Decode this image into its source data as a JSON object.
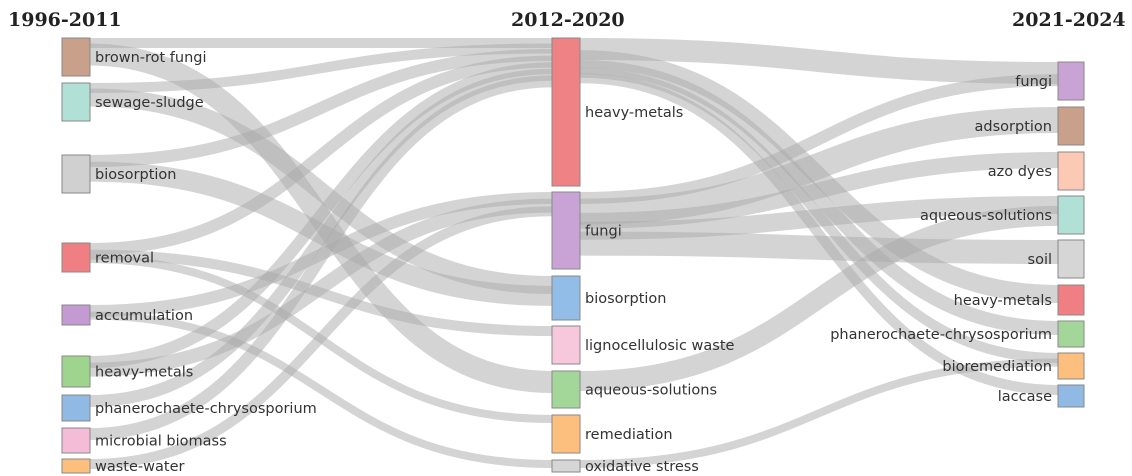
{
  "columns": [
    {
      "title": "1996-2011",
      "nodes": [
        {
          "id": "c0-brown-rot-fungi",
          "label": "brown-rot fungi",
          "color": "#c9a08a"
        },
        {
          "id": "c0-sewage-sludge",
          "label": "sewage-sludge",
          "color": "#b0e0d6"
        },
        {
          "id": "c0-biosorption",
          "label": "biosorption",
          "color": "#d0d0d0"
        },
        {
          "id": "c0-removal",
          "label": "removal",
          "color": "#ef7f82"
        },
        {
          "id": "c0-accumulation",
          "label": "accumulation",
          "color": "#c49ad2"
        },
        {
          "id": "c0-heavy-metals",
          "label": "heavy-metals",
          "color": "#9fd48f"
        },
        {
          "id": "c0-phanerochaete-chrysosporium",
          "label": "phanerochaete-chrysosporium",
          "color": "#90b9e3"
        },
        {
          "id": "c0-microbial-biomass",
          "label": "microbial biomass",
          "color": "#f4bcd6"
        },
        {
          "id": "c0-waste-water",
          "label": "waste-water",
          "color": "#fcbf7d"
        }
      ]
    },
    {
      "title": "2012-2020",
      "nodes": [
        {
          "id": "c1-heavy-metals",
          "label": "heavy-metals",
          "color": "#ef8284"
        },
        {
          "id": "c1-fungi",
          "label": "fungi",
          "color": "#c9a3d6"
        },
        {
          "id": "c1-biosorption",
          "label": "biosorption",
          "color": "#92bde6"
        },
        {
          "id": "c1-lignocellulosic-waste",
          "label": "lignocellulosic waste",
          "color": "#f7c8dc"
        },
        {
          "id": "c1-aqueous-solutions",
          "label": "aqueous-solutions",
          "color": "#a3d79a"
        },
        {
          "id": "c1-remediation",
          "label": "remediation",
          "color": "#fcbf7d"
        },
        {
          "id": "c1-oxidative-stress",
          "label": "oxidative stress",
          "color": "#d6d6d6"
        }
      ]
    },
    {
      "title": "2021-2024",
      "nodes": [
        {
          "id": "c2-fungi",
          "label": "fungi",
          "color": "#c9a3d6"
        },
        {
          "id": "c2-adsorption",
          "label": "adsorption",
          "color": "#c9a08a"
        },
        {
          "id": "c2-azo-dyes",
          "label": "azo dyes",
          "color": "#fcc9b5"
        },
        {
          "id": "c2-aqueous-solutions",
          "label": "aqueous-solutions",
          "color": "#b0e0d6"
        },
        {
          "id": "c2-soil",
          "label": "soil",
          "color": "#d6d6d6"
        },
        {
          "id": "c2-heavy-metals",
          "label": "heavy-metals",
          "color": "#ef7f82"
        },
        {
          "id": "c2-phanerochaete-chrysosporium",
          "label": "phanerochaete-chrysosporium",
          "color": "#a3d79a"
        },
        {
          "id": "c2-bioremediation",
          "label": "bioremediation",
          "color": "#fcbf7d"
        },
        {
          "id": "c2-laccase",
          "label": "laccase",
          "color": "#90b9e3"
        }
      ]
    }
  ],
  "links": [
    {
      "source": "c0-brown-rot-fungi",
      "target": "c1-heavy-metals"
    },
    {
      "source": "c0-sewage-sludge",
      "target": "c1-heavy-metals"
    },
    {
      "source": "c0-biosorption",
      "target": "c1-heavy-metals"
    },
    {
      "source": "c0-removal",
      "target": "c1-heavy-metals"
    },
    {
      "source": "c0-heavy-metals",
      "target": "c1-heavy-metals"
    },
    {
      "source": "c0-phanerochaete-chrysosporium",
      "target": "c1-heavy-metals"
    },
    {
      "source": "c0-accumulation",
      "target": "c1-fungi"
    },
    {
      "source": "c0-heavy-metals",
      "target": "c1-fungi"
    },
    {
      "source": "c0-microbial-biomass",
      "target": "c1-heavy-metals"
    },
    {
      "source": "c0-waste-water",
      "target": "c1-fungi"
    },
    {
      "source": "c0-brown-rot-fungi",
      "target": "c1-aqueous-solutions"
    },
    {
      "source": "c0-sewage-sludge",
      "target": "c1-biosorption"
    },
    {
      "source": "c0-biosorption",
      "target": "c1-biosorption"
    },
    {
      "source": "c0-removal",
      "target": "c1-lignocellulosic-waste"
    },
    {
      "source": "c0-accumulation",
      "target": "c1-oxidative-stress"
    },
    {
      "source": "c0-removal",
      "target": "c1-remediation"
    },
    {
      "source": "c1-heavy-metals",
      "target": "c2-fungi"
    },
    {
      "source": "c1-heavy-metals",
      "target": "c2-heavy-metals"
    },
    {
      "source": "c1-heavy-metals",
      "target": "c2-phanerochaete-chrysosporium"
    },
    {
      "source": "c1-heavy-metals",
      "target": "c2-bioremediation"
    },
    {
      "source": "c1-heavy-metals",
      "target": "c2-laccase"
    },
    {
      "source": "c1-fungi",
      "target": "c2-fungi"
    },
    {
      "source": "c1-fungi",
      "target": "c2-adsorption"
    },
    {
      "source": "c1-fungi",
      "target": "c2-azo-dyes"
    },
    {
      "source": "c1-fungi",
      "target": "c2-aqueous-solutions"
    },
    {
      "source": "c1-fungi",
      "target": "c2-soil"
    },
    {
      "source": "c1-aqueous-solutions",
      "target": "c2-aqueous-solutions"
    },
    {
      "source": "c1-oxidative-stress",
      "target": "c2-bioremediation"
    }
  ]
}
